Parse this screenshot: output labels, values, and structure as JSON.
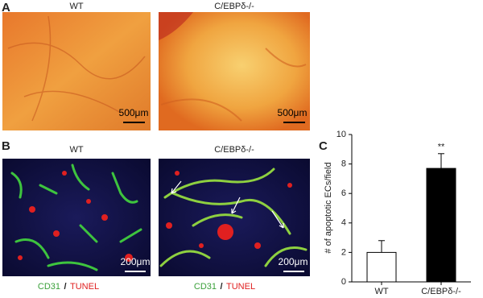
{
  "panels": {
    "A": {
      "label": "A",
      "images": [
        {
          "title": "WT",
          "scale_bar": "500μm"
        },
        {
          "title": "C/EBPδ-/-",
          "scale_bar": "500μm"
        }
      ]
    },
    "B": {
      "label": "B",
      "images": [
        {
          "title": "WT",
          "scale_bar": "200μm"
        },
        {
          "title": "C/EBPδ-/-",
          "scale_bar": "200μm"
        }
      ],
      "stain": {
        "green": "CD31",
        "separator": "/",
        "red": "TUNEL"
      }
    },
    "C": {
      "label": "C"
    }
  },
  "chart_data": {
    "type": "bar",
    "ylabel": "# of apoptotic ECs/field",
    "categories": [
      "WT",
      "C/EBPδ-/-"
    ],
    "values": [
      2.0,
      7.7
    ],
    "errors": [
      0.8,
      1.0
    ],
    "colors": [
      "#ffffff",
      "#000000"
    ],
    "ylim": [
      0,
      10
    ],
    "yticks": [
      0,
      2,
      4,
      6,
      8,
      10
    ],
    "annotations": [
      {
        "text": "**",
        "category": "C/EBPδ-/-"
      }
    ]
  }
}
